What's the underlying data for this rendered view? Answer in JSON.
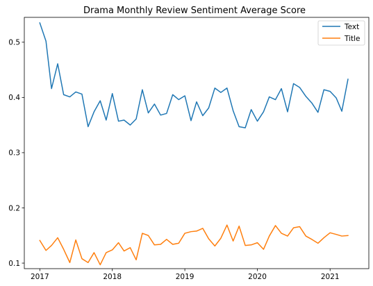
{
  "chart_data": {
    "type": "line",
    "title": "Drama Monthly Review Sentiment Average Score",
    "xlabel": "",
    "ylabel": "",
    "x": [
      "2017-01",
      "2017-02",
      "2017-03",
      "2017-04",
      "2017-05",
      "2017-06",
      "2017-07",
      "2017-08",
      "2017-09",
      "2017-10",
      "2017-11",
      "2017-12",
      "2018-01",
      "2018-02",
      "2018-03",
      "2018-04",
      "2018-05",
      "2018-06",
      "2018-07",
      "2018-08",
      "2018-09",
      "2018-10",
      "2018-11",
      "2018-12",
      "2019-01",
      "2019-02",
      "2019-03",
      "2019-04",
      "2019-05",
      "2019-06",
      "2019-07",
      "2019-08",
      "2019-09",
      "2019-10",
      "2019-11",
      "2019-12",
      "2020-01",
      "2020-02",
      "2020-03",
      "2020-04",
      "2020-05",
      "2020-06",
      "2020-07",
      "2020-08",
      "2020-09",
      "2020-10",
      "2020-11",
      "2020-12",
      "2021-01",
      "2021-02",
      "2021-03",
      "2021-04"
    ],
    "series": [
      {
        "name": "Text",
        "color": "#1f77b4",
        "values": [
          0.535,
          0.502,
          0.416,
          0.461,
          0.405,
          0.401,
          0.41,
          0.406,
          0.347,
          0.374,
          0.394,
          0.359,
          0.407,
          0.357,
          0.359,
          0.35,
          0.361,
          0.414,
          0.372,
          0.388,
          0.368,
          0.371,
          0.405,
          0.396,
          0.403,
          0.358,
          0.392,
          0.367,
          0.381,
          0.417,
          0.409,
          0.417,
          0.376,
          0.347,
          0.345,
          0.378,
          0.357,
          0.374,
          0.401,
          0.396,
          0.416,
          0.374,
          0.425,
          0.418,
          0.402,
          0.39,
          0.373,
          0.414,
          0.411,
          0.399,
          0.375,
          0.433
        ]
      },
      {
        "name": "Title",
        "color": "#ff7f0e",
        "values": [
          0.141,
          0.123,
          0.132,
          0.146,
          0.125,
          0.101,
          0.142,
          0.108,
          0.101,
          0.119,
          0.097,
          0.119,
          0.124,
          0.137,
          0.122,
          0.128,
          0.106,
          0.154,
          0.15,
          0.133,
          0.134,
          0.143,
          0.134,
          0.136,
          0.154,
          0.157,
          0.158,
          0.163,
          0.144,
          0.131,
          0.145,
          0.169,
          0.14,
          0.167,
          0.132,
          0.133,
          0.137,
          0.125,
          0.149,
          0.168,
          0.154,
          0.149,
          0.164,
          0.166,
          0.149,
          0.143,
          0.136,
          0.146,
          0.155,
          0.152,
          0.149,
          0.15
        ]
      }
    ],
    "xticks": [
      "2017",
      "2018",
      "2019",
      "2020",
      "2021"
    ],
    "yticks": [
      0.1,
      0.2,
      0.3,
      0.4,
      0.5
    ],
    "ytick_labels": [
      "0.1",
      "0.2",
      "0.3",
      "0.4",
      "0.5"
    ],
    "ylim": [
      0.09,
      0.545
    ],
    "xlim": [
      "2016-10-15",
      "2021-07-15"
    ],
    "grid": false,
    "legend": "top-right"
  }
}
